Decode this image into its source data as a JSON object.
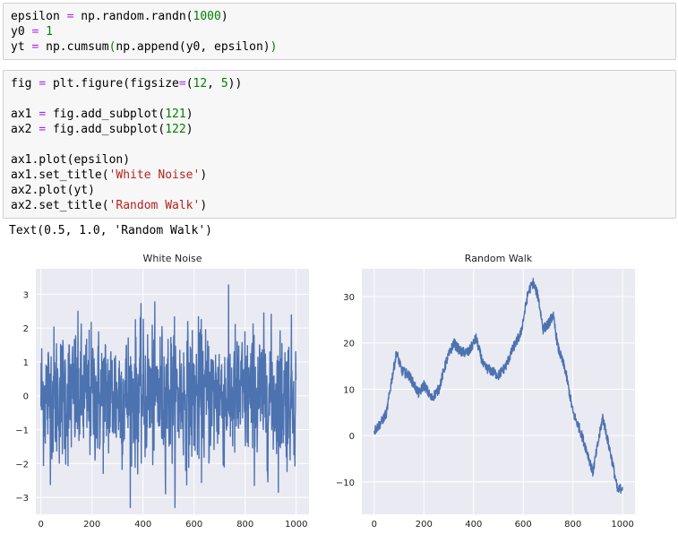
{
  "cell1": {
    "lines": [
      [
        "epsilon ",
        "=",
        " np.random.randn(",
        "1000",
        ")"
      ],
      [
        "y0 ",
        "=",
        " ",
        "1",
        ""
      ],
      [
        "yt ",
        "=",
        " np.cumsum",
        "(",
        "np.append(y0, epsilon)",
        ")"
      ]
    ],
    "text": {
      "l1a": "epsilon ",
      "l1b": "=",
      "l1c": " np.random.randn(",
      "l1d": "1000",
      "l1e": ")",
      "l2a": "y0 ",
      "l2b": "=",
      "l2c": " ",
      "l2d": "1",
      "l3a": "yt ",
      "l3b": "=",
      "l3c": " np.cumsum",
      "l3d": "(",
      "l3e": "np.append(y0, epsilon)",
      "l3f": ")"
    }
  },
  "cell2": {
    "l1a": "fig ",
    "l1b": "=",
    "l1c": " plt.figure(figsize",
    "l1d": "=",
    "l1e": "(",
    "l1f": "12",
    "l1g": ", ",
    "l1h": "5",
    "l1i": "))",
    "l3a": "ax1 ",
    "l3b": "=",
    "l3c": " fig.add_subplot(",
    "l3d": "121",
    "l3e": ")",
    "l4a": "ax2 ",
    "l4b": "=",
    "l4c": " fig.add_subplot(",
    "l4d": "122",
    "l4e": ")",
    "l6": "ax1.plot(epsilon)",
    "l7a": "ax1.set_title(",
    "l7b": "'White Noise'",
    "l7c": ")",
    "l8": "ax2.plot(yt)",
    "l9a": "ax2.set_title(",
    "l9b": "'Random Walk'",
    "l9c": ")"
  },
  "output_text": "Text(0.5, 1.0, 'Random Walk')",
  "colors": {
    "plot_bg": "#eaeaf2",
    "line": "#4c72b0",
    "grid": "#ffffff"
  },
  "chart_data": [
    {
      "type": "line",
      "title": "White Noise",
      "xlim": [
        -20,
        1050
      ],
      "ylim": [
        -3.5,
        3.75
      ],
      "xticks": [
        0,
        200,
        400,
        600,
        800,
        1000
      ],
      "yticks": [
        -3,
        -2,
        -1,
        0,
        1,
        2,
        3
      ],
      "grid": true,
      "series": [
        {
          "n_points": 1000,
          "distribution": "standard normal",
          "min": -3.3,
          "max": 3.5
        }
      ]
    },
    {
      "type": "line",
      "title": "Random Walk",
      "xlim": [
        -50,
        1050
      ],
      "ylim": [
        -17,
        36
      ],
      "xticks": [
        0,
        200,
        400,
        600,
        800,
        1000
      ],
      "yticks": [
        -10,
        0,
        10,
        20,
        30
      ],
      "grid": true,
      "series": [
        {
          "anchors": [
            [
              0,
              1
            ],
            [
              30,
              3
            ],
            [
              50,
              5
            ],
            [
              70,
              12
            ],
            [
              90,
              18
            ],
            [
              110,
              14
            ],
            [
              140,
              13
            ],
            [
              160,
              11
            ],
            [
              180,
              9
            ],
            [
              200,
              11
            ],
            [
              230,
              8
            ],
            [
              260,
              10
            ],
            [
              290,
              16
            ],
            [
              320,
              20
            ],
            [
              350,
              18
            ],
            [
              380,
              18
            ],
            [
              410,
              21
            ],
            [
              440,
              15
            ],
            [
              470,
              14
            ],
            [
              500,
              13
            ],
            [
              530,
              15
            ],
            [
              560,
              19
            ],
            [
              590,
              22
            ],
            [
              620,
              31
            ],
            [
              640,
              33
            ],
            [
              660,
              30
            ],
            [
              680,
              23
            ],
            [
              700,
              24
            ],
            [
              720,
              26
            ],
            [
              740,
              19
            ],
            [
              770,
              14
            ],
            [
              800,
              5
            ],
            [
              830,
              1
            ],
            [
              860,
              -4
            ],
            [
              880,
              -8
            ],
            [
              900,
              -2
            ],
            [
              920,
              4
            ],
            [
              940,
              -1
            ],
            [
              960,
              -6
            ],
            [
              980,
              -12
            ],
            [
              1000,
              -11
            ]
          ]
        }
      ]
    }
  ]
}
